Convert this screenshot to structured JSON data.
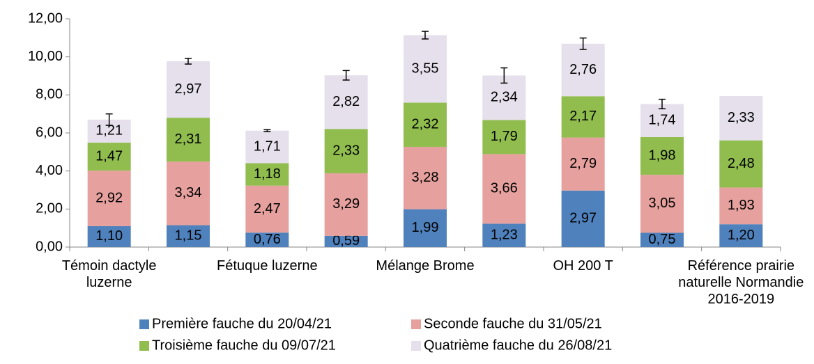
{
  "chart_data": {
    "type": "stacked_bar",
    "categories": [
      "Témoin dactyle luzerne",
      null,
      "Fétuque luzerne",
      null,
      "Mélange Brome",
      null,
      "OH 200 T",
      null,
      "Référence prairie naturelle Normandie 2016-2019"
    ],
    "series": [
      {
        "name": "Première fauche du 20/04/21",
        "color": "#4f81bd",
        "values": [
          1.1,
          1.15,
          0.76,
          0.59,
          1.99,
          1.23,
          2.97,
          0.75,
          1.2
        ],
        "value_labels": [
          "1,10",
          "1,15",
          "0,76",
          "0,59",
          "1,99",
          "1,23",
          "2,97",
          "0,75",
          "1,20"
        ]
      },
      {
        "name": "Seconde fauche du 31/05/21",
        "color": "#e6a19e",
        "values": [
          2.92,
          3.34,
          2.47,
          3.29,
          3.28,
          3.66,
          2.79,
          3.05,
          1.93
        ],
        "value_labels": [
          "2,92",
          "3,34",
          "2,47",
          "3,29",
          "3,28",
          "3,66",
          "2,79",
          "3,05",
          "1,93"
        ]
      },
      {
        "name": "Troisième fauche du 09/07/21",
        "color": "#90bd4e",
        "values": [
          1.47,
          2.31,
          1.18,
          2.33,
          2.32,
          1.79,
          2.17,
          1.98,
          2.48
        ],
        "value_labels": [
          "1,47",
          "2,31",
          "1,18",
          "2,33",
          "2,32",
          "1,79",
          "2,17",
          "1,98",
          "2,48"
        ]
      },
      {
        "name": "Quatrième fauche du 26/08/21",
        "color": "#e6e0ec",
        "values": [
          1.21,
          2.97,
          1.71,
          2.82,
          3.55,
          2.34,
          2.76,
          1.74,
          2.33
        ],
        "value_labels": [
          "1,21",
          "2,97",
          "1,71",
          "2,82",
          "3,55",
          "2,34",
          "2,76",
          "1,74",
          "2,33"
        ]
      }
    ],
    "errors": [
      0.3,
      0.15,
      0.05,
      0.25,
      0.2,
      0.4,
      0.3,
      0.25,
      null
    ],
    "ylim": [
      0,
      12
    ],
    "yticks": [
      {
        "value": 0,
        "label": "0,00"
      },
      {
        "value": 2,
        "label": "2,00"
      },
      {
        "value": 4,
        "label": "4,00"
      },
      {
        "value": 6,
        "label": "6,00"
      },
      {
        "value": 8,
        "label": "8,00"
      },
      {
        "value": 10,
        "label": "10,00"
      },
      {
        "value": 12,
        "label": "12,00"
      }
    ],
    "legend": "bottom"
  }
}
